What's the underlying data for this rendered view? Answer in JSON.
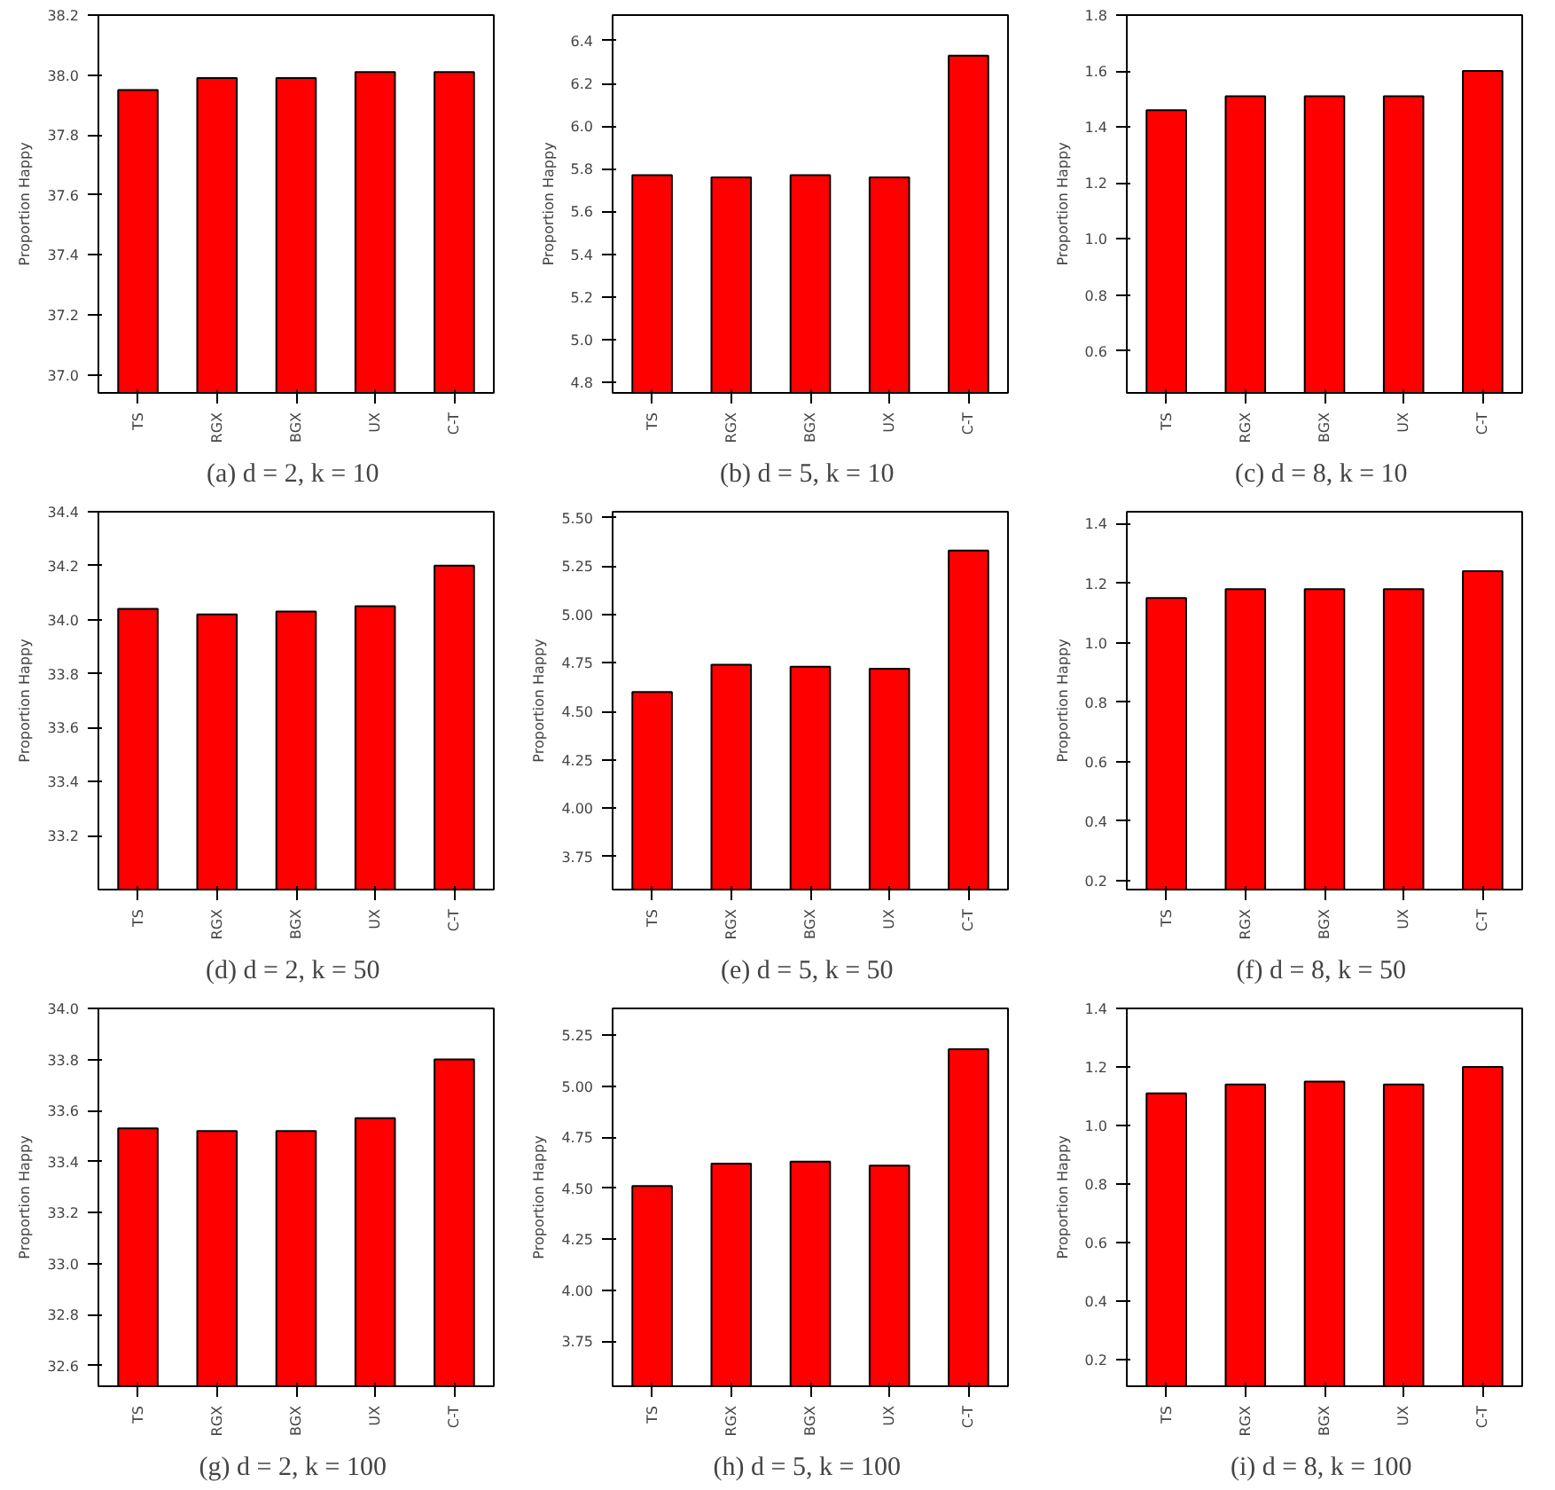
{
  "chart_data": [
    {
      "type": "bar",
      "title": "(a)  d = 2, k = 10",
      "ylabel": "Proportion Happy",
      "categories": [
        "TS",
        "RGX",
        "BGX",
        "UX",
        "C-T"
      ],
      "values": [
        37.95,
        37.99,
        37.99,
        38.01,
        38.01
      ],
      "color": "#ff0000",
      "ylim": [
        36.94,
        38.2
      ],
      "yticks": [
        {
          "value": 37,
          "label": "37.0"
        },
        37.2,
        37.4,
        37.6,
        37.8,
        {
          "value": 38,
          "label": "38.0"
        },
        38.2
      ],
      "grid": false
    },
    {
      "type": "bar",
      "title": "(b)  d = 5, k = 10",
      "ylabel": "Proportion Happy",
      "categories": [
        "TS",
        "RGX",
        "BGX",
        "UX",
        "C-T"
      ],
      "values": [
        5.77,
        5.76,
        5.77,
        5.76,
        6.33
      ],
      "color": "#ff0000",
      "ylim": [
        4.75,
        6.52
      ],
      "yticks": [
        4.8,
        {
          "value": 5,
          "label": "5.0"
        },
        5.2,
        5.4,
        5.6,
        5.8,
        {
          "value": 6,
          "label": "6.0"
        },
        6.2,
        6.4
      ],
      "grid": false
    },
    {
      "type": "bar",
      "title": "(c)  d = 8, k = 10",
      "ylabel": "Proportion Happy",
      "categories": [
        "TS",
        "RGX",
        "BGX",
        "UX",
        "C-T"
      ],
      "values": [
        1.46,
        1.51,
        1.51,
        1.51,
        1.6
      ],
      "color": "#ff0000",
      "ylim": [
        0.45,
        1.8
      ],
      "yticks": [
        0.6,
        0.8,
        {
          "value": 1,
          "label": "1.0"
        },
        1.2,
        1.4,
        1.6,
        1.8
      ],
      "grid": false
    },
    {
      "type": "bar",
      "title": "(d)  d = 2, k = 50",
      "ylabel": "Proportion Happy",
      "categories": [
        "TS",
        "RGX",
        "BGX",
        "UX",
        "C-T"
      ],
      "values": [
        34.04,
        34.02,
        34.03,
        34.05,
        34.2
      ],
      "color": "#ff0000",
      "ylim": [
        33.0,
        34.4
      ],
      "yticks": [
        33.2,
        33.4,
        33.6,
        33.8,
        {
          "value": 34,
          "label": "34.0"
        },
        34.2,
        34.4
      ],
      "grid": false
    },
    {
      "type": "bar",
      "title": "(e)  d = 5, k = 50",
      "ylabel": "Proportion Happy",
      "categories": [
        "TS",
        "RGX",
        "BGX",
        "UX",
        "C-T"
      ],
      "values": [
        4.6,
        4.74,
        4.73,
        4.72,
        5.33
      ],
      "color": "#ff0000",
      "ylim": [
        3.58,
        5.53
      ],
      "yticks": [
        3.75,
        {
          "value": 4,
          "label": "4.00"
        },
        4.25,
        {
          "value": 4.5,
          "label": "4.50"
        },
        4.75,
        {
          "value": 5,
          "label": "5.00"
        },
        5.25,
        {
          "value": 5.5,
          "label": "5.50"
        }
      ],
      "grid": false
    },
    {
      "type": "bar",
      "title": "(f)  d = 8, k = 50",
      "ylabel": "Proportion Happy",
      "categories": [
        "TS",
        "RGX",
        "BGX",
        "UX",
        "C-T"
      ],
      "values": [
        1.15,
        1.18,
        1.18,
        1.18,
        1.24
      ],
      "color": "#ff0000",
      "ylim": [
        0.17,
        1.44
      ],
      "yticks": [
        0.2,
        0.4,
        0.6,
        0.8,
        {
          "value": 1,
          "label": "1.0"
        },
        1.2,
        1.4
      ],
      "grid": false
    },
    {
      "type": "bar",
      "title": "(g)  d = 2, k = 100",
      "ylabel": "Proportion Happy",
      "categories": [
        "TS",
        "RGX",
        "BGX",
        "UX",
        "C-T"
      ],
      "values": [
        33.53,
        33.52,
        33.52,
        33.57,
        33.8
      ],
      "color": "#ff0000",
      "ylim": [
        32.52,
        34.0
      ],
      "yticks": [
        32.6,
        32.8,
        {
          "value": 33,
          "label": "33.0"
        },
        33.2,
        33.4,
        33.6,
        33.8,
        {
          "value": 34,
          "label": "34.0"
        }
      ],
      "grid": false
    },
    {
      "type": "bar",
      "title": "(h)  d = 5, k = 100",
      "ylabel": "Proportion Happy",
      "categories": [
        "TS",
        "RGX",
        "BGX",
        "UX",
        "C-T"
      ],
      "values": [
        4.51,
        4.62,
        4.63,
        4.61,
        5.18
      ],
      "color": "#ff0000",
      "ylim": [
        3.53,
        5.38
      ],
      "yticks": [
        3.75,
        {
          "value": 4,
          "label": "4.00"
        },
        4.25,
        {
          "value": 4.5,
          "label": "4.50"
        },
        4.75,
        {
          "value": 5,
          "label": "5.00"
        },
        5.25
      ],
      "grid": false
    },
    {
      "type": "bar",
      "title": "(i)  d = 8, k = 100",
      "ylabel": "Proportion Happy",
      "categories": [
        "TS",
        "RGX",
        "BGX",
        "UX",
        "C-T"
      ],
      "values": [
        1.11,
        1.14,
        1.15,
        1.14,
        1.2
      ],
      "color": "#ff0000",
      "ylim": [
        0.11,
        1.4
      ],
      "yticks": [
        0.2,
        0.4,
        0.6,
        0.8,
        {
          "value": 1,
          "label": "1.0"
        },
        1.2,
        1.4
      ],
      "grid": false
    }
  ]
}
